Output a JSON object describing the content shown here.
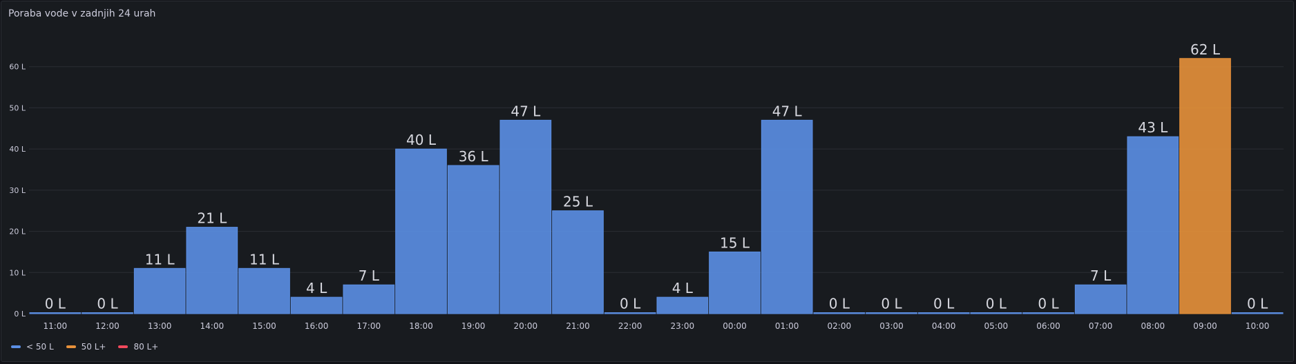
{
  "panel": {
    "title": "Poraba vode v zadnjih 24 urah"
  },
  "chart_data": {
    "type": "bar",
    "title": "Poraba vode v zadnjih 24 urah",
    "categories": [
      "11:00",
      "12:00",
      "13:00",
      "14:00",
      "15:00",
      "16:00",
      "17:00",
      "18:00",
      "19:00",
      "20:00",
      "21:00",
      "22:00",
      "23:00",
      "00:00",
      "01:00",
      "02:00",
      "03:00",
      "04:00",
      "05:00",
      "06:00",
      "07:00",
      "08:00",
      "09:00",
      "10:00"
    ],
    "values": [
      0,
      0,
      11,
      21,
      11,
      4,
      7,
      40,
      36,
      47,
      25,
      0,
      4,
      15,
      47,
      0,
      0,
      0,
      0,
      0,
      7,
      43,
      62,
      0
    ],
    "unit": "L",
    "ylim": [
      0,
      70
    ],
    "yticks": [
      0,
      10,
      20,
      30,
      40,
      50,
      60
    ],
    "ytick_labels": [
      "0 L",
      "10 L",
      "20 L",
      "30 L",
      "40 L",
      "50 L",
      "60 L"
    ],
    "grid": true,
    "thresholds": [
      {
        "min": 0,
        "label": "< 50 L",
        "color": "#5b8fe4"
      },
      {
        "min": 50,
        "label": "50 L+",
        "color": "#e7913a"
      },
      {
        "min": 80,
        "label": "80 L+",
        "color": "#f2495c"
      }
    ],
    "legend_position": "bottom-left"
  },
  "legend": {
    "items": [
      {
        "label": "< 50 L",
        "color": "#5b8fe4"
      },
      {
        "label": "50 L+",
        "color": "#e7913a"
      },
      {
        "label": "80 L+",
        "color": "#f2495c"
      }
    ]
  }
}
